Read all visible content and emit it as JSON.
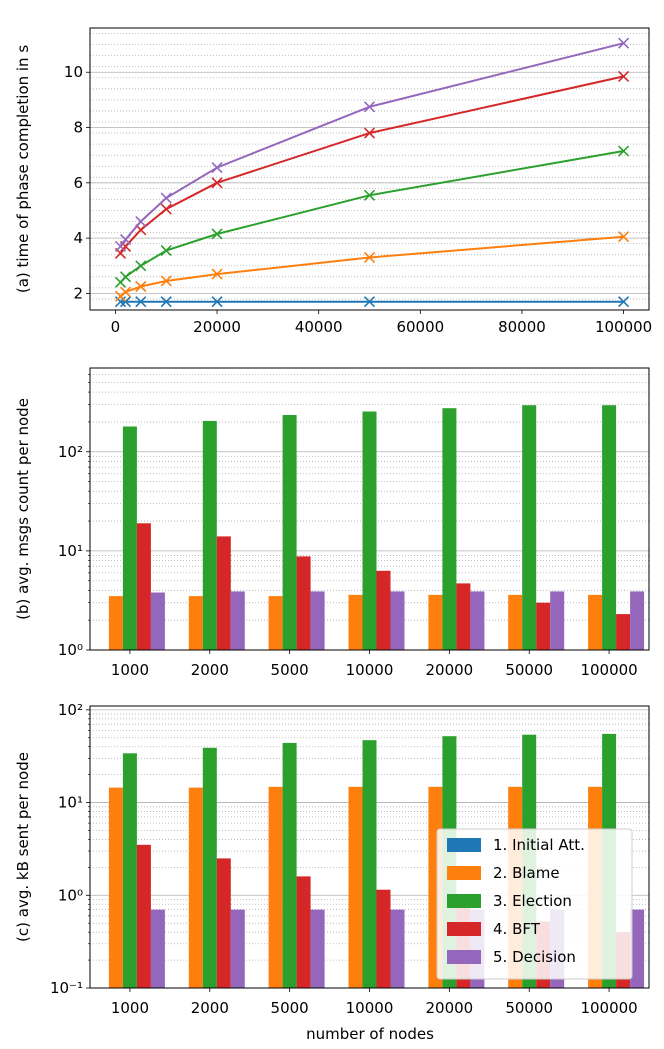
{
  "colors": {
    "initial_att": "#1f77b4",
    "blame": "#ff7f0e",
    "election": "#2ca02c",
    "bft": "#d62728",
    "decision": "#9467bd",
    "major_grid": "#b0b0b0",
    "minor_grid": "#b0b0b0"
  },
  "chart_data": [
    {
      "type": "line",
      "ylabel": "(a) time of phase completion in s",
      "xlabel": "",
      "xlim": [
        -5000,
        105000
      ],
      "ylim": [
        1.4,
        11.6
      ],
      "x_ticks": [
        0,
        20000,
        40000,
        60000,
        80000,
        100000
      ],
      "x_tick_labels": [
        "0",
        "20000",
        "40000",
        "60000",
        "80000",
        "100000"
      ],
      "y_ticks": [
        2,
        4,
        6,
        8,
        10
      ],
      "y_tick_labels": [
        "2",
        "4",
        "6",
        "8",
        "10"
      ],
      "y_minor_step": 0.4,
      "grid": "y major + minor",
      "marker": "x",
      "x": [
        1000,
        2000,
        5000,
        10000,
        20000,
        50000,
        100000
      ],
      "series": [
        {
          "name": "1. Initial Att.",
          "color_key": "initial_att",
          "values": [
            1.7,
            1.7,
            1.7,
            1.7,
            1.7,
            1.7,
            1.7
          ]
        },
        {
          "name": "2. Blame",
          "color_key": "blame",
          "values": [
            1.9,
            2.05,
            2.25,
            2.45,
            2.7,
            3.3,
            4.05
          ]
        },
        {
          "name": "3. Election",
          "color_key": "election",
          "values": [
            2.4,
            2.6,
            3.0,
            3.55,
            4.15,
            5.55,
            7.15
          ]
        },
        {
          "name": "4. BFT",
          "color_key": "bft",
          "values": [
            3.45,
            3.7,
            4.3,
            5.05,
            6.0,
            7.8,
            9.85
          ]
        },
        {
          "name": "5. Decision",
          "color_key": "decision",
          "values": [
            3.7,
            3.95,
            4.6,
            5.45,
            6.55,
            8.75,
            11.05
          ]
        }
      ]
    },
    {
      "type": "bar",
      "scale": "log",
      "ylabel": "(b) avg. msgs count per node",
      "xlabel": "",
      "ylim": [
        1,
        700
      ],
      "y_ticks": [
        1,
        10,
        100
      ],
      "y_tick_labels": [
        "10⁰",
        "10¹",
        "10²"
      ],
      "grid": "y major + minor",
      "categories": [
        "1000",
        "2000",
        "5000",
        "10000",
        "20000",
        "50000",
        "100000"
      ],
      "series": [
        {
          "name": "1. Initial Att.",
          "color_key": "initial_att",
          "values": [
            null,
            null,
            null,
            null,
            null,
            null,
            null
          ]
        },
        {
          "name": "2. Blame",
          "color_key": "blame",
          "values": [
            3.5,
            3.5,
            3.5,
            3.6,
            3.6,
            3.6,
            3.6
          ]
        },
        {
          "name": "3. Election",
          "color_key": "election",
          "values": [
            180,
            205,
            235,
            255,
            275,
            295,
            295
          ]
        },
        {
          "name": "4. BFT",
          "color_key": "bft",
          "values": [
            19,
            14,
            8.8,
            6.3,
            4.7,
            3.0,
            2.3
          ]
        },
        {
          "name": "5. Decision",
          "color_key": "decision",
          "values": [
            3.8,
            3.9,
            3.9,
            3.9,
            3.9,
            3.9,
            3.9
          ]
        }
      ]
    },
    {
      "type": "bar",
      "scale": "log",
      "ylabel": "(c) avg. kB sent per node",
      "xlabel": "number of nodes",
      "ylim": [
        0.1,
        110
      ],
      "y_ticks": [
        0.1,
        1,
        10,
        100
      ],
      "y_tick_labels": [
        "10⁻¹",
        "10⁰",
        "10¹",
        "10²"
      ],
      "grid": "y major + minor",
      "legend": "lower-right",
      "categories": [
        "1000",
        "2000",
        "5000",
        "10000",
        "20000",
        "50000",
        "100000"
      ],
      "series": [
        {
          "name": "1. Initial Att.",
          "color_key": "initial_att",
          "values": [
            null,
            null,
            null,
            null,
            null,
            null,
            null
          ]
        },
        {
          "name": "2. Blame",
          "color_key": "blame",
          "values": [
            14.5,
            14.5,
            14.8,
            14.8,
            14.8,
            14.8,
            14.8
          ]
        },
        {
          "name": "3. Election",
          "color_key": "election",
          "values": [
            34,
            39,
            44,
            47,
            52,
            54,
            55
          ]
        },
        {
          "name": "4. BFT",
          "color_key": "bft",
          "values": [
            3.5,
            2.5,
            1.6,
            1.15,
            0.75,
            0.52,
            0.4
          ]
        },
        {
          "name": "5. Decision",
          "color_key": "decision",
          "values": [
            0.7,
            0.7,
            0.7,
            0.7,
            0.7,
            0.7,
            0.7
          ]
        }
      ]
    }
  ]
}
